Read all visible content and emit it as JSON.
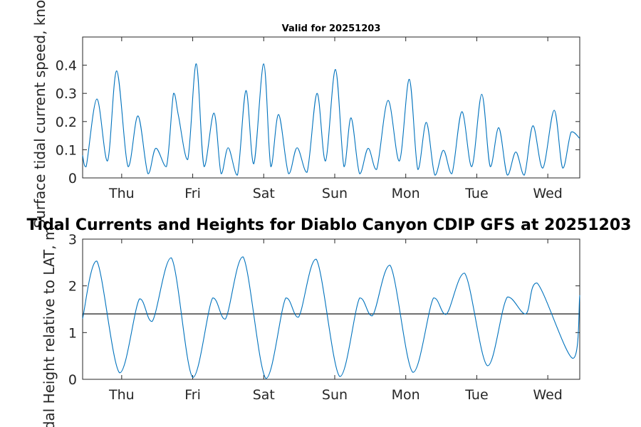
{
  "chart_data": [
    {
      "type": "line",
      "title": "Valid for 20251203",
      "ylabel": "Surface tidal current speed, knots",
      "xlabel": "",
      "x_unit": "days from start",
      "xlim": [
        0,
        7.0
      ],
      "ylim": [
        0,
        0.5
      ],
      "yticks": [
        0,
        0.1,
        0.2,
        0.3,
        0.4
      ],
      "ytick_labels": [
        "0",
        "0.1",
        "0.2",
        "0.3",
        "0.4"
      ],
      "xticks": [
        0.55,
        1.55,
        2.55,
        3.55,
        4.55,
        5.55,
        6.55
      ],
      "xtick_labels": [
        "Thu",
        "Fri",
        "Sat",
        "Sun",
        "Mon",
        "Tue",
        "Wed"
      ],
      "color": "#0072BD",
      "series": [
        {
          "name": "Surface tidal current speed",
          "x": [
            0,
            0.05,
            0.2,
            0.35,
            0.48,
            0.64,
            0.78,
            0.92,
            1.03,
            1.18,
            1.28,
            1.35,
            1.48,
            1.6,
            1.71,
            1.85,
            1.95,
            2.05,
            2.18,
            2.3,
            2.41,
            2.55,
            2.65,
            2.76,
            2.9,
            3.02,
            3.16,
            3.3,
            3.42,
            3.56,
            3.68,
            3.78,
            3.9,
            4.02,
            4.14,
            4.3,
            4.46,
            4.6,
            4.72,
            4.84,
            4.96,
            5.08,
            5.2,
            5.34,
            5.48,
            5.62,
            5.74,
            5.86,
            5.98,
            6.1,
            6.22,
            6.34,
            6.48,
            6.64,
            6.76,
            6.88,
            7.0
          ],
          "y": [
            0.08,
            0.04,
            0.28,
            0.06,
            0.38,
            0.04,
            0.22,
            0.015,
            0.105,
            0.04,
            0.3,
            0.22,
            0.065,
            0.405,
            0.04,
            0.23,
            0.015,
            0.107,
            0.01,
            0.31,
            0.05,
            0.405,
            0.04,
            0.225,
            0.015,
            0.107,
            0.02,
            0.3,
            0.06,
            0.385,
            0.04,
            0.213,
            0.015,
            0.105,
            0.03,
            0.275,
            0.06,
            0.35,
            0.03,
            0.197,
            0.01,
            0.098,
            0.015,
            0.235,
            0.04,
            0.297,
            0.04,
            0.178,
            0.01,
            0.092,
            0.01,
            0.185,
            0.035,
            0.24,
            0.035,
            0.163,
            0.14
          ]
        }
      ]
    },
    {
      "type": "line",
      "title": "Tidal Currents and Heights for Diablo Canyon CDIP GFS at 20251203",
      "ylabel": "Tidal Height relative to LAT, m",
      "xlabel": "",
      "x_unit": "days from start",
      "xlim": [
        0,
        7.0
      ],
      "ylim": [
        0,
        3
      ],
      "yticks": [
        0,
        1,
        2,
        3
      ],
      "ytick_labels": [
        "0",
        "1",
        "2",
        "3"
      ],
      "xticks": [
        0.55,
        1.55,
        2.55,
        3.55,
        4.55,
        5.55,
        6.55
      ],
      "xtick_labels": [
        "Thu",
        "Fri",
        "Sat",
        "Sun",
        "Mon",
        "Tue",
        "Wed"
      ],
      "color": "#0072BD",
      "reference_line": {
        "y": 1.4,
        "color": "#000000"
      },
      "series": [
        {
          "name": "Tidal height",
          "x": [
            0,
            0.2,
            0.52,
            0.8,
            0.98,
            1.25,
            1.55,
            1.83,
            2.01,
            2.26,
            2.58,
            2.86,
            3.04,
            3.29,
            3.62,
            3.9,
            4.08,
            4.33,
            4.65,
            4.94,
            5.12,
            5.38,
            5.7,
            5.98,
            6.24,
            6.4,
            6.9,
            7.0
          ],
          "y": [
            1.3,
            2.53,
            0.14,
            1.72,
            1.24,
            2.6,
            0.04,
            1.74,
            1.29,
            2.62,
            0.02,
            1.74,
            1.33,
            2.57,
            0.06,
            1.74,
            1.36,
            2.44,
            0.15,
            1.74,
            1.39,
            2.27,
            0.29,
            1.76,
            1.4,
            2.06,
            0.45,
            1.8
          ]
        }
      ]
    }
  ]
}
